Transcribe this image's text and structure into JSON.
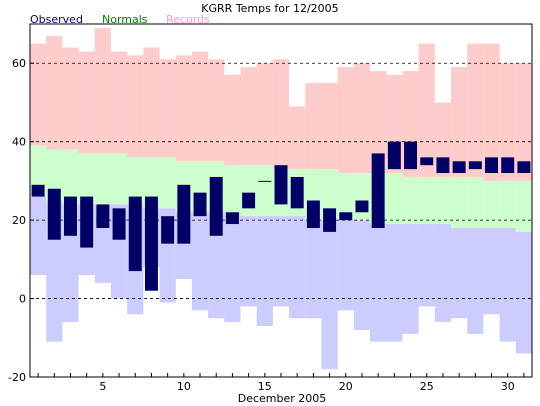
{
  "colors": {
    "observed": "#000066",
    "observed_legend": "#000080",
    "normals_band": "#ccffcc",
    "normals_legend": "#008000",
    "records_high_band": "#ffcccc",
    "records_low_band": "#ccccff",
    "records_legend": "#ff99cc"
  },
  "chart_data": {
    "type": "bar",
    "title": "KGRR Temps for 12/2005",
    "xlabel": "December 2005",
    "ylabel": "",
    "legend": [
      "Observed",
      "Normals",
      "Records"
    ],
    "legend_placement": "top-left",
    "grid": "horizontal dashed at y = -20, 0, 20, 40, 60",
    "xlim": [
      0.5,
      31.5
    ],
    "ylim": [
      -20,
      70
    ],
    "x_tick_labels": [
      5,
      10,
      15,
      20,
      25,
      30
    ],
    "y_tick_labels": [
      -20,
      0,
      20,
      40,
      60
    ],
    "days": [
      1,
      2,
      3,
      4,
      5,
      6,
      7,
      8,
      9,
      10,
      11,
      12,
      13,
      14,
      15,
      16,
      17,
      18,
      19,
      20,
      21,
      22,
      23,
      24,
      25,
      26,
      27,
      28,
      29,
      30,
      31
    ],
    "series": [
      {
        "name": "Records",
        "record_high": [
          65,
          67,
          64,
          63,
          69,
          63,
          62,
          64,
          61,
          62,
          63,
          61,
          57,
          59,
          60,
          61,
          49,
          55,
          55,
          59,
          60,
          58,
          57,
          58,
          65,
          50,
          59,
          65,
          65,
          60,
          60
        ],
        "record_low": [
          6,
          -11,
          -6,
          6,
          4,
          0,
          -4,
          8,
          -1,
          5,
          -3,
          -5,
          -6,
          -2,
          -7,
          -2,
          -5,
          -5,
          -18,
          -3,
          -8,
          -11,
          -11,
          -9,
          -2,
          -6,
          -5,
          -9,
          -4,
          -11,
          -14
        ]
      },
      {
        "name": "Normals",
        "normal_high": [
          39,
          38,
          38,
          37,
          37,
          37,
          36,
          36,
          36,
          35,
          35,
          35,
          34,
          34,
          34,
          33,
          33,
          33,
          33,
          32,
          32,
          32,
          32,
          31,
          31,
          31,
          31,
          31,
          30,
          30,
          30
        ],
        "normal_low": [
          26,
          25,
          24,
          24,
          24,
          24,
          24,
          23,
          23,
          22,
          22,
          22,
          22,
          21,
          21,
          21,
          21,
          20,
          20,
          20,
          20,
          19,
          19,
          19,
          19,
          19,
          18,
          18,
          18,
          18,
          17
        ]
      },
      {
        "name": "Observed",
        "high": [
          29,
          28,
          26,
          26,
          24,
          23,
          26,
          26,
          21,
          29,
          27,
          31,
          22,
          27,
          30,
          34,
          31,
          25,
          23,
          22,
          25,
          37,
          40,
          40,
          36,
          36,
          35,
          35,
          36,
          36,
          35
        ],
        "low": [
          26,
          15,
          16,
          13,
          18,
          15,
          7,
          2,
          14,
          14,
          21,
          16,
          19,
          23,
          30,
          24,
          23,
          18,
          17,
          20,
          22,
          18,
          33,
          33,
          34,
          32,
          32,
          33,
          32,
          32,
          32
        ]
      }
    ]
  }
}
